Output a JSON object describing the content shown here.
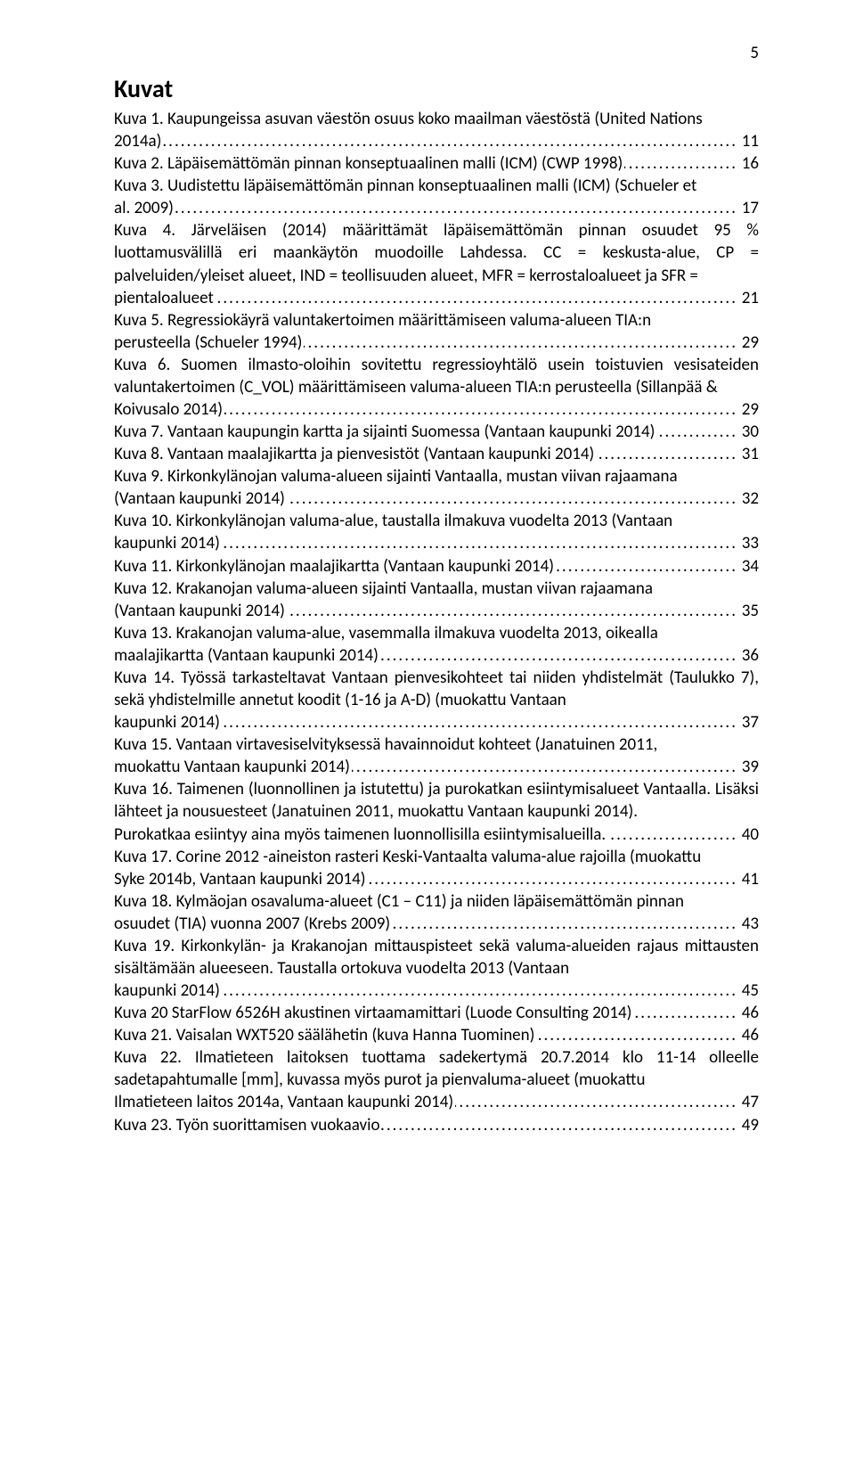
{
  "pageNumber": "5",
  "sectionTitle": "Kuvat",
  "entries": [
    {
      "lines": [
        "Kuva 1. Kaupungeissa asuvan väestön osuus koko maailman väestöstä (United Nations"
      ],
      "last": "2014a)",
      "page": "11"
    },
    {
      "lines": [],
      "last": "Kuva 2. Läpäisemättömän pinnan konseptuaalinen malli (ICM) (CWP 1998)",
      "page": "16"
    },
    {
      "lines": [
        "Kuva 3. Uudistettu läpäisemättömän pinnan konseptuaalinen malli (ICM) (Schueler et"
      ],
      "last": "al. 2009)",
      "page": "17"
    },
    {
      "lines": [
        "Kuva 4. Järveläisen (2014) määrittämät läpäisemättömän pinnan osuudet 95 % luottamusvälillä eri maankäytön muodoille Lahdessa. CC = keskusta-alue, CP = palveluiden/yleiset alueet, IND = teollisuuden alueet, MFR = kerrostaloalueet ja SFR ="
      ],
      "last": "pientaloalueet",
      "page": "21"
    },
    {
      "lines": [
        "Kuva 5. Regressiokäyrä valuntakertoimen määrittämiseen valuma-alueen TIA:n"
      ],
      "last": "perusteella (Schueler 1994)",
      "page": "29"
    },
    {
      "lines": [
        "Kuva 6. Suomen ilmasto-oloihin sovitettu regressioyhtälö usein toistuvien vesisateiden valuntakertoimen (C_VOL) määrittämiseen valuma-alueen TIA:n perusteella (Sillanpää &"
      ],
      "last": "Koivusalo 2014)",
      "page": "29"
    },
    {
      "lines": [],
      "last": "Kuva 7. Vantaan kaupungin kartta ja sijainti Suomessa (Vantaan kaupunki 2014)",
      "page": "30"
    },
    {
      "lines": [],
      "last": "Kuva 8. Vantaan maalajikartta ja pienvesistöt (Vantaan kaupunki 2014)",
      "page": "31"
    },
    {
      "lines": [
        "Kuva 9. Kirkonkylänojan valuma-alueen sijainti Vantaalla, mustan viivan rajaamana"
      ],
      "last": "(Vantaan kaupunki 2014)",
      "page": "32"
    },
    {
      "lines": [
        "Kuva 10. Kirkonkylänojan valuma-alue, taustalla ilmakuva vuodelta 2013 (Vantaan"
      ],
      "last": "kaupunki 2014)",
      "page": "33"
    },
    {
      "lines": [],
      "last": "Kuva 11. Kirkonkylänojan maalajikartta (Vantaan kaupunki 2014)",
      "page": "34"
    },
    {
      "lines": [
        "Kuva 12. Krakanojan valuma-alueen sijainti Vantaalla, mustan viivan rajaamana"
      ],
      "last": "(Vantaan kaupunki 2014)",
      "page": "35"
    },
    {
      "lines": [
        "Kuva 13. Krakanojan valuma-alue, vasemmalla ilmakuva vuodelta 2013, oikealla"
      ],
      "last": "maalajikartta (Vantaan kaupunki 2014)",
      "page": "36"
    },
    {
      "lines": [
        "Kuva 14. Työssä tarkasteltavat Vantaan pienvesikohteet tai niiden yhdistelmät (Taulukko 7), sekä yhdistelmille annetut koodit (1-16 ja A-D) (muokattu Vantaan"
      ],
      "last": "kaupunki 2014)",
      "page": "37"
    },
    {
      "lines": [
        "Kuva 15. Vantaan virtavesiselvityksessä havainnoidut kohteet (Janatuinen 2011,"
      ],
      "last": "muokattu Vantaan kaupunki 2014)",
      "page": "39"
    },
    {
      "lines": [
        "Kuva 16. Taimenen (luonnollinen ja istutettu) ja purokatkan esiintymisalueet Vantaalla. Lisäksi lähteet ja nousuesteet (Janatuinen 2011, muokattu Vantaan kaupunki 2014)."
      ],
      "last": "Purokatkaa esiintyy aina myös taimenen luonnollisilla esiintymisalueilla.",
      "page": "40"
    },
    {
      "lines": [
        "Kuva 17. Corine 2012 -aineiston rasteri Keski-Vantaalta valuma-alue rajoilla (muokattu"
      ],
      "last": "Syke 2014b, Vantaan kaupunki 2014)",
      "page": "41"
    },
    {
      "lines": [
        "Kuva 18. Kylmäojan osavaluma-alueet (C1 – C11) ja niiden läpäisemättömän pinnan"
      ],
      "last": "osuudet (TIA) vuonna 2007 (Krebs 2009)",
      "page": "43"
    },
    {
      "lines": [
        "Kuva 19. Kirkonkylän- ja Krakanojan mittauspisteet sekä valuma-alueiden rajaus mittausten sisältämään alueeseen. Taustalla ortokuva vuodelta 2013 (Vantaan"
      ],
      "last": "kaupunki 2014)",
      "page": "45"
    },
    {
      "lines": [],
      "last": "Kuva 20 StarFlow 6526H akustinen virtaamamittari (Luode Consulting 2014)",
      "page": "46"
    },
    {
      "lines": [],
      "last": "Kuva 21. Vaisalan WXT520 säälähetin (kuva Hanna Tuominen)",
      "page": "46"
    },
    {
      "lines": [
        "Kuva 22. Ilmatieteen laitoksen tuottama sadekertymä 20.7.2014 klo 11-14 olleelle sadetapahtumalle [mm], kuvassa myös purot ja pienvaluma-alueet (muokattu"
      ],
      "last": "Ilmatieteen laitos 2014a, Vantaan kaupunki 2014)",
      "page": "47"
    },
    {
      "lines": [],
      "last": "Kuva 23. Työn suorittamisen vuokaavio",
      "page": "49"
    }
  ]
}
